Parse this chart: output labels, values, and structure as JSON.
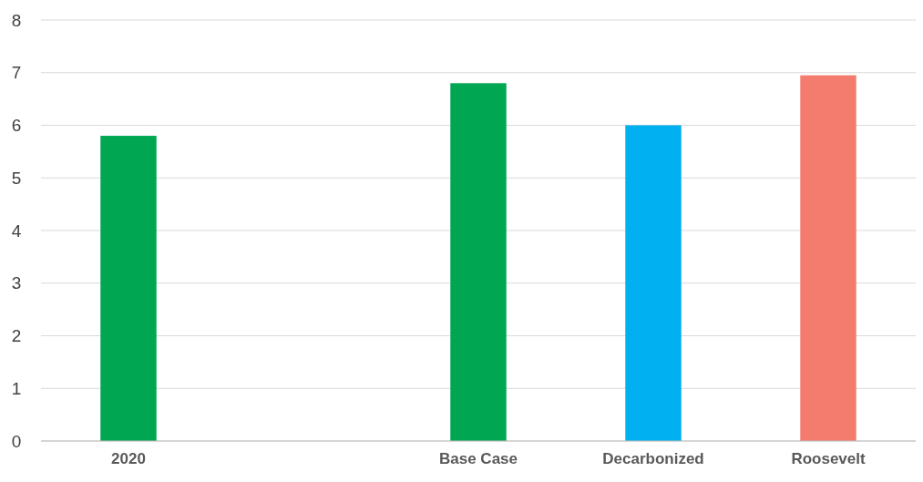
{
  "chart_data": {
    "type": "bar",
    "categories": [
      "2020",
      null,
      "Base Case",
      "Decarbonized",
      "Roosevelt"
    ],
    "values": [
      5.8,
      null,
      6.8,
      6.0,
      6.95
    ],
    "colors": [
      "#00a651",
      null,
      "#00a651",
      "#00b0f0",
      "#f47c6f"
    ],
    "ylim": [
      0,
      8
    ],
    "yticks": [
      0,
      1,
      2,
      3,
      4,
      5,
      6,
      7,
      8
    ],
    "grid": "y"
  }
}
